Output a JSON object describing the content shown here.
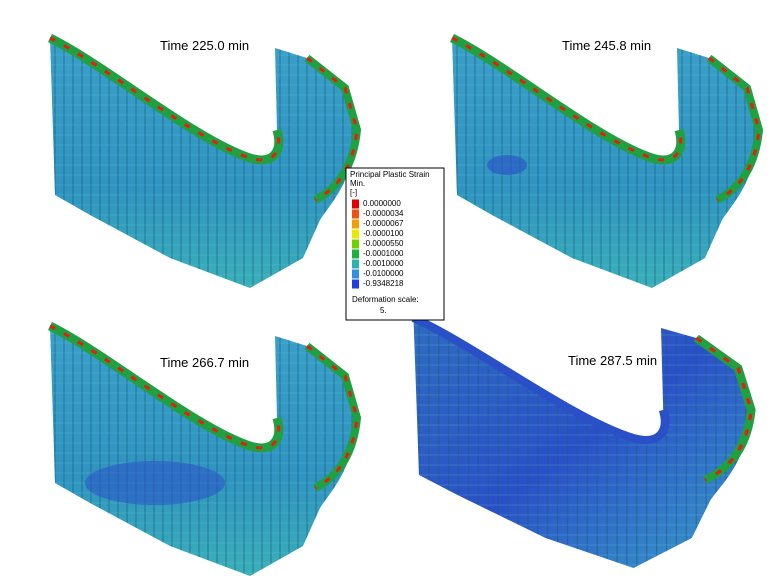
{
  "panels": [
    {
      "label": "Time 225.0 min"
    },
    {
      "label": "Time 245.8 min"
    },
    {
      "label": "Time 266.7 min"
    },
    {
      "label": "Time 287.5 min"
    }
  ],
  "legend": {
    "title": "Principal Plastic Strain",
    "subtitle": "Min.",
    "unit": "[-]",
    "entries": [
      {
        "label": "0.0000000",
        "color": "#e00000"
      },
      {
        "label": "-0.0000034",
        "color": "#f05010"
      },
      {
        "label": "-0.0000067",
        "color": "#f0a000"
      },
      {
        "label": "-0.0000100",
        "color": "#e8e800"
      },
      {
        "label": "-0.0000550",
        "color": "#70d000"
      },
      {
        "label": "-0.0001000",
        "color": "#20b040"
      },
      {
        "label": "-0.0010000",
        "color": "#30b0b0"
      },
      {
        "label": "-0.0100000",
        "color": "#3090e0"
      },
      {
        "label": "-0.9348218",
        "color": "#2040e0"
      }
    ],
    "deformation_label": "Deformation scale:",
    "deformation_value": "5."
  }
}
